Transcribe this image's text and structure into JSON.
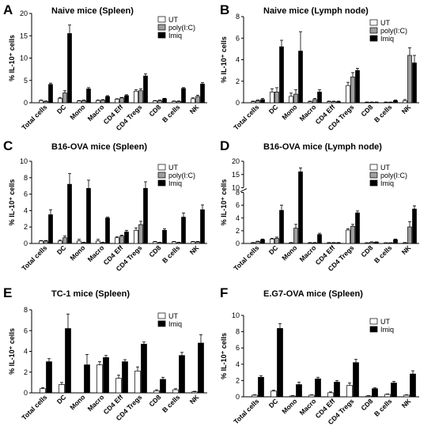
{
  "chart_data": [
    {
      "letter": "A",
      "type": "bar",
      "title": "Naive mice (Spleen)",
      "ylabel": "% IL-10⁺ cells",
      "ylim": [
        0,
        20
      ],
      "yticks": [
        0,
        5,
        10,
        15,
        20
      ],
      "categories": [
        "Total cells",
        "DC",
        "Mono",
        "Macro",
        "CD4 Eff",
        "CD4 Tregs",
        "CD8",
        "B cells",
        "NK"
      ],
      "series": [
        {
          "name": "UT",
          "values": [
            0.5,
            1.0,
            0.4,
            0.5,
            0.8,
            2.6,
            0.4,
            0.3,
            0.9
          ],
          "errors": [
            0.1,
            0.2,
            0.1,
            0.1,
            0.1,
            0.3,
            0.1,
            0.1,
            0.2
          ]
        },
        {
          "name": "poly(I:C)",
          "values": [
            0.3,
            2.2,
            0.5,
            0.6,
            1.1,
            2.7,
            0.5,
            0.3,
            1.4
          ],
          "errors": [
            0.1,
            0.5,
            0.1,
            0.1,
            0.1,
            0.4,
            0.1,
            0.1,
            0.3
          ]
        },
        {
          "name": "Imiq",
          "values": [
            4.1,
            15.5,
            3.1,
            1.4,
            1.6,
            6.0,
            0.9,
            3.2,
            4.2
          ],
          "errors": [
            0.3,
            1.9,
            0.3,
            0.2,
            0.2,
            0.5,
            0.1,
            0.2,
            0.3
          ]
        }
      ]
    },
    {
      "letter": "B",
      "type": "bar",
      "title": "Naive mice (Lymph node)",
      "ylabel": "% IL-10⁺ cells",
      "ylim": [
        0,
        8
      ],
      "yticks": [
        0,
        2,
        4,
        6,
        8
      ],
      "categories": [
        "Total cells",
        "DC",
        "Mono",
        "Macro",
        "CD4 Eff",
        "CD4 Tregs",
        "CD8",
        "B cells",
        "NK"
      ],
      "series": [
        {
          "name": "UT",
          "values": [
            0.1,
            1.0,
            0.6,
            0.1,
            0.1,
            1.6,
            0.05,
            0.05,
            0.2
          ],
          "errors": [
            0.05,
            0.3,
            0.3,
            0.05,
            0.05,
            0.3,
            0.02,
            0.02,
            0.1
          ]
        },
        {
          "name": "poly(I:C)",
          "values": [
            0.2,
            1.0,
            0.8,
            0.3,
            0.1,
            2.4,
            0.05,
            0.05,
            4.4
          ],
          "errors": [
            0.05,
            0.4,
            0.4,
            0.1,
            0.05,
            0.4,
            0.02,
            0.02,
            0.7
          ]
        },
        {
          "name": "Imiq",
          "values": [
            0.3,
            5.2,
            4.8,
            1.0,
            0.1,
            3.0,
            0.05,
            0.2,
            3.7
          ],
          "errors": [
            0.1,
            0.6,
            1.8,
            0.2,
            0.05,
            0.2,
            0.02,
            0.05,
            0.7
          ]
        }
      ]
    },
    {
      "letter": "C",
      "type": "bar",
      "title": "B16-OVA mice (Spleen)",
      "ylabel": "% IL-10⁺ cells",
      "ylim": [
        0,
        10
      ],
      "yticks": [
        0,
        2,
        4,
        6,
        8,
        10
      ],
      "categories": [
        "Total cells",
        "DC",
        "Mono",
        "Macro",
        "CD4 Eff",
        "CD4 Tregs",
        "CD8",
        "B cells",
        "NK"
      ],
      "series": [
        {
          "name": "UT",
          "values": [
            0.3,
            0.3,
            0.3,
            0.3,
            0.7,
            1.6,
            0.2,
            0.2,
            0.2
          ],
          "errors": [
            0.05,
            0.1,
            0.2,
            0.2,
            0.1,
            0.3,
            0.05,
            0.05,
            0.05
          ]
        },
        {
          "name": "poly(I:C)",
          "values": [
            0.3,
            0.7,
            0.1,
            0.1,
            0.9,
            2.3,
            0.1,
            0.1,
            0.2
          ],
          "errors": [
            0.05,
            0.2,
            0.05,
            0.05,
            0.1,
            0.4,
            0.05,
            0.05,
            0.05
          ]
        },
        {
          "name": "Imiq",
          "values": [
            3.5,
            7.2,
            6.7,
            3.1,
            1.4,
            6.7,
            1.6,
            3.2,
            4.1
          ],
          "errors": [
            0.6,
            1.3,
            1.0,
            0.1,
            0.2,
            0.8,
            0.2,
            0.5,
            0.6
          ]
        }
      ]
    },
    {
      "letter": "D",
      "type": "bar",
      "title": "B16-OVA mice (Lymph node)",
      "ylabel": "% IL-10⁺ cells",
      "ylim": [
        0,
        20
      ],
      "yticks": [
        0,
        2,
        4,
        6,
        8,
        10,
        15,
        20
      ],
      "axis_break": [
        8,
        10
      ],
      "categories": [
        "Total cells",
        "DC",
        "Mono",
        "Macro",
        "CD4 Eff",
        "CD4 Tregs",
        "CD8",
        "B cells",
        "NK"
      ],
      "series": [
        {
          "name": "UT",
          "values": [
            0.1,
            0.7,
            0.1,
            0.1,
            0.1,
            2.1,
            0.1,
            0.1,
            0.1
          ],
          "errors": [
            0.05,
            0.1,
            0.05,
            0.05,
            0.05,
            0.2,
            0.02,
            0.02,
            0.05
          ]
        },
        {
          "name": "poly(I:C)",
          "values": [
            0.3,
            0.8,
            2.4,
            0.1,
            0.1,
            2.7,
            0.2,
            0.1,
            2.6
          ],
          "errors": [
            0.05,
            0.2,
            0.6,
            0.05,
            0.05,
            0.3,
            0.05,
            0.02,
            0.8
          ]
        },
        {
          "name": "Imiq",
          "values": [
            0.6,
            5.2,
            16,
            1.4,
            0.1,
            4.8,
            0.2,
            0.6,
            5.4
          ],
          "errors": [
            0.1,
            0.8,
            1.5,
            0.2,
            0.05,
            0.3,
            0.05,
            0.1,
            0.5
          ]
        }
      ]
    },
    {
      "letter": "E",
      "type": "bar",
      "title": "TC-1 mice (Spleen)",
      "ylabel": "% IL-10⁺ cells",
      "ylim": [
        0,
        8
      ],
      "yticks": [
        0,
        2,
        4,
        6,
        8
      ],
      "categories": [
        "Total cells",
        "DC",
        "Mono",
        "Macro",
        "CD4 Eff",
        "CD4 Tregs",
        "CD8",
        "B cells",
        "NK"
      ],
      "series": [
        {
          "name": "UT",
          "values": [
            0.4,
            0.8,
            0,
            2.7,
            1.4,
            2.1,
            0.2,
            0.3,
            0.1
          ],
          "errors": [
            0.1,
            0.2,
            0,
            0.3,
            0.3,
            0.4,
            0.1,
            0.1,
            0.05
          ]
        },
        {
          "name": "Imiq",
          "values": [
            3.0,
            6.2,
            2.7,
            3.4,
            3.0,
            4.7,
            1.3,
            3.6,
            4.8
          ],
          "errors": [
            0.3,
            1.4,
            1.0,
            0.2,
            0.2,
            0.2,
            0.2,
            0.3,
            0.8
          ]
        }
      ]
    },
    {
      "letter": "F",
      "type": "bar",
      "title": "E.G7-OVA mice (Spleen)",
      "ylabel": "% IL-10⁺ cells",
      "ylim": [
        0,
        10
      ],
      "yticks": [
        0,
        2,
        4,
        6,
        8,
        10
      ],
      "categories": [
        "Total cells",
        "DC",
        "Mono",
        "Macro",
        "CD4 Eff",
        "CD4 Tregs",
        "CD8",
        "B cells",
        "NK"
      ],
      "series": [
        {
          "name": "UT",
          "values": [
            0.2,
            0.7,
            0.1,
            0.2,
            0.5,
            1.4,
            0.1,
            0.3,
            0.2
          ],
          "errors": [
            0.05,
            0.1,
            0.05,
            0.05,
            0.1,
            0.3,
            0.05,
            0.05,
            0.05
          ]
        },
        {
          "name": "Imiq",
          "values": [
            2.4,
            8.4,
            1.5,
            2.2,
            1.8,
            4.2,
            1.0,
            1.7,
            2.8
          ],
          "errors": [
            0.2,
            0.6,
            0.3,
            0.2,
            0.2,
            0.4,
            0.1,
            0.2,
            0.4
          ]
        }
      ]
    }
  ],
  "colors": {
    "UT": "#ffffff",
    "poly(I:C)": "#9e9e9e",
    "Imiq": "#000000",
    "stroke": "#000000"
  }
}
